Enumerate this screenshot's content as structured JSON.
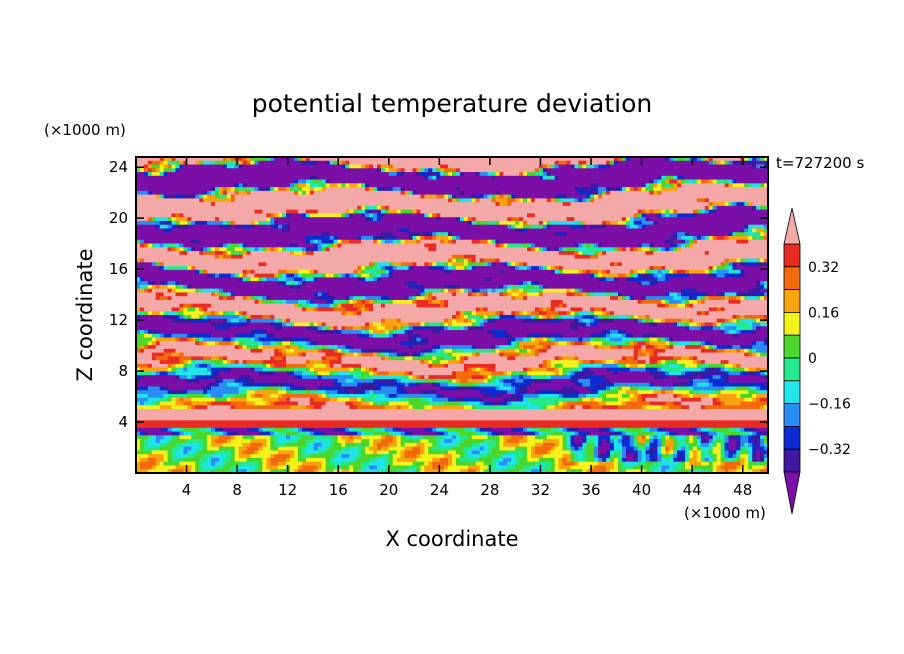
{
  "chart_data": {
    "type": "heatmap",
    "title": "potential temperature deviation",
    "xlabel": "X coordinate",
    "ylabel": "Z coordinate",
    "x_unit": "(×1000 m)",
    "z_unit": "(×1000 m)",
    "time_label": "t=727200 s",
    "xlim": [
      0,
      50
    ],
    "zlim": [
      0,
      24.8
    ],
    "x_ticks": [
      4,
      8,
      12,
      16,
      20,
      24,
      28,
      32,
      36,
      40,
      44,
      48
    ],
    "z_ticks": [
      4,
      8,
      12,
      16,
      20,
      24
    ],
    "colorbar": {
      "levels": [
        -0.4,
        -0.32,
        -0.24,
        -0.16,
        -0.08,
        0,
        0.08,
        0.16,
        0.24,
        0.32,
        0.4
      ],
      "labeled_levels": [
        "0.32",
        "0.16",
        "0",
        "−0.16",
        "−0.32"
      ],
      "labeled_values": [
        0.32,
        0.16,
        0,
        -0.16,
        -0.32
      ],
      "colors": [
        "#7b0fa8",
        "#3d18a0",
        "#0a2bd2",
        "#2a8cf5",
        "#1fe4e9",
        "#24e88c",
        "#4ad62a",
        "#f3f21a",
        "#f9a40e",
        "#f36a0a",
        "#ea2b24",
        "#f5a8a8"
      ],
      "extend": "both"
    },
    "field_description": "stratified turbulent layers; warm (pink) bands aloft near z≈15-24 km, cold (purple) layers interleaved, strong inversion near z≈4 km, weak near-zero values below 3 km"
  }
}
